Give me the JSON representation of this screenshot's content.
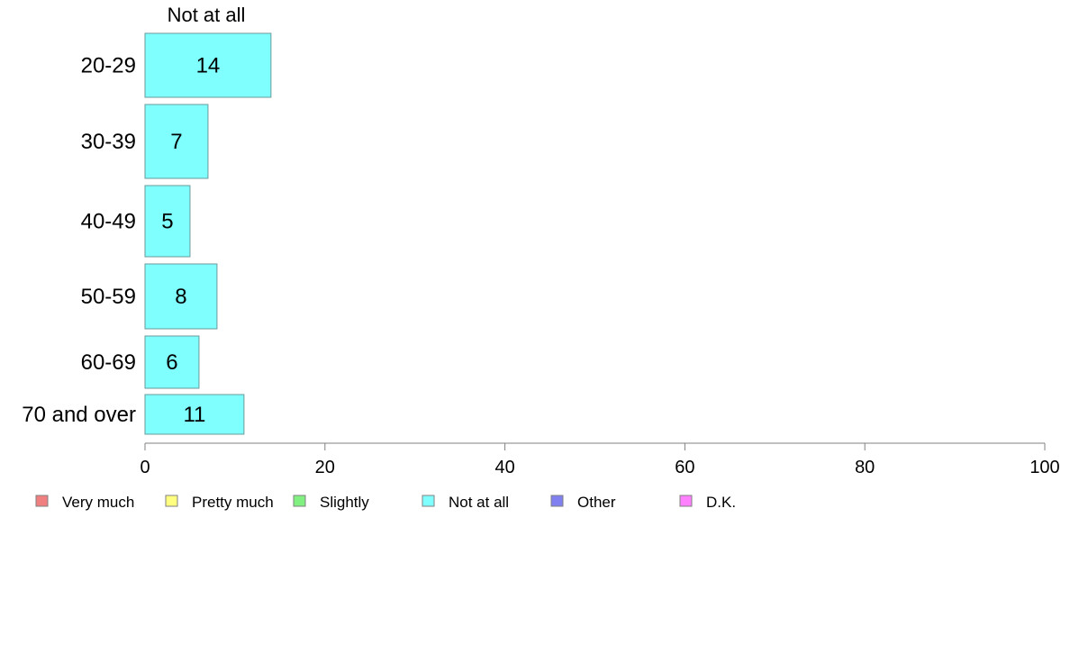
{
  "chart_data": {
    "type": "bar",
    "orientation": "horizontal",
    "column_header": "Not at all",
    "categories": [
      "20-29",
      "30-39",
      "40-49",
      "50-59",
      "60-69",
      "70 and over"
    ],
    "series": [
      {
        "name": "Not at all",
        "color": "#80ffff",
        "values": [
          14,
          7,
          5,
          8,
          6,
          11
        ]
      }
    ],
    "xlim": [
      0,
      100
    ],
    "xticks": [
      0,
      20,
      40,
      60,
      80,
      100
    ],
    "grid": false,
    "legend_position": "bottom",
    "legend": [
      {
        "label": "Very much",
        "color": "#f08080"
      },
      {
        "label": "Pretty much",
        "color": "#ffff80"
      },
      {
        "label": "Slightly",
        "color": "#80f080"
      },
      {
        "label": "Not at all",
        "color": "#80ffff"
      },
      {
        "label": "Other",
        "color": "#8080f0"
      },
      {
        "label": "D.K.",
        "color": "#ff80ff"
      }
    ]
  }
}
